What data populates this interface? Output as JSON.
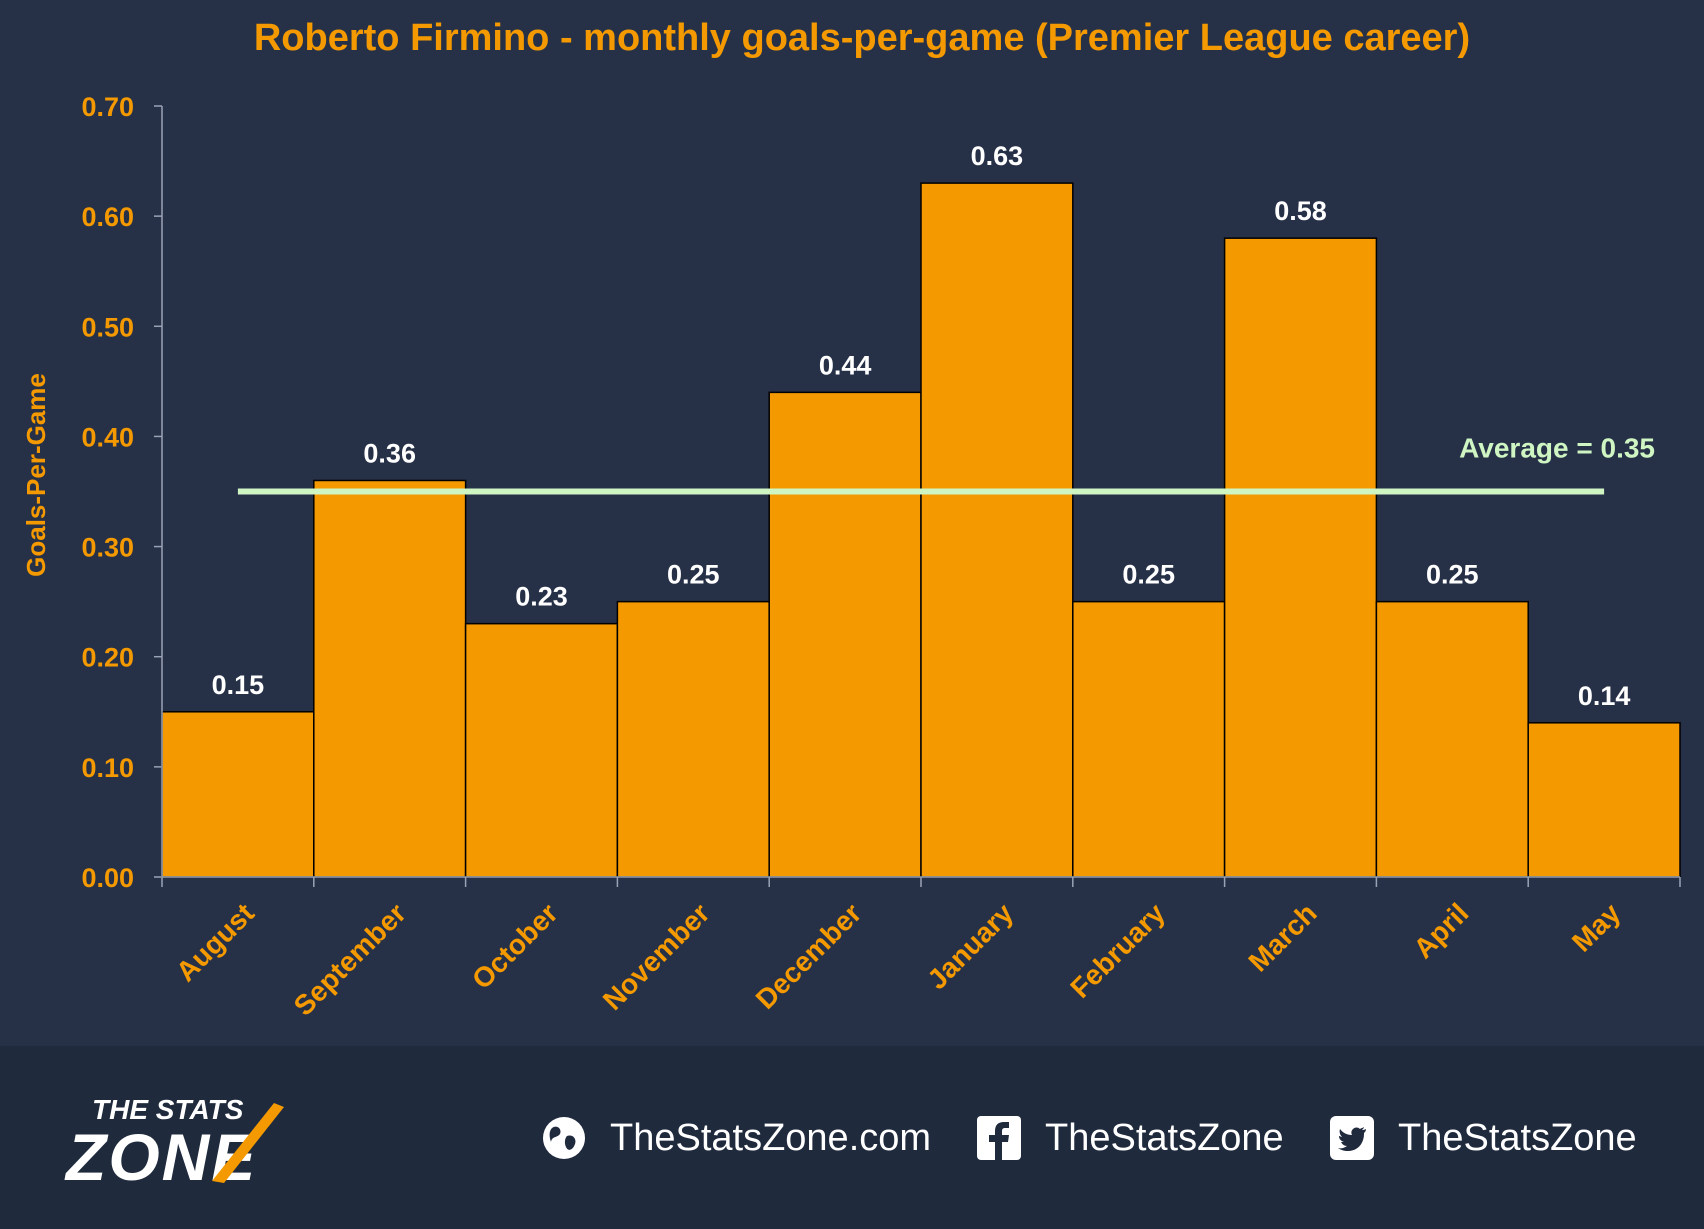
{
  "chart_data": {
    "type": "bar",
    "title": "Roberto Firmino - monthly goals-per-game (Premier League career)",
    "xlabel": "",
    "ylabel": "Goals-Per-Game",
    "categories": [
      "August",
      "September",
      "October",
      "November",
      "December",
      "January",
      "February",
      "March",
      "April",
      "May"
    ],
    "values": [
      0.15,
      0.36,
      0.23,
      0.25,
      0.44,
      0.63,
      0.25,
      0.58,
      0.25,
      0.14
    ],
    "data_labels": [
      "0.15",
      "0.36",
      "0.23",
      "0.25",
      "0.44",
      "0.63",
      "0.25",
      "0.58",
      "0.25",
      "0.14"
    ],
    "ylim": [
      0,
      0.7
    ],
    "yticks": [
      "0.00",
      "0.10",
      "0.20",
      "0.30",
      "0.40",
      "0.50",
      "0.60",
      "0.70"
    ],
    "average": {
      "value": 0.35,
      "label": "Average = 0.35"
    },
    "grid": false,
    "legend": "none",
    "colors": {
      "bar": "#F49A00",
      "bar_edge": "#000000",
      "average_line": "#CFF5C3",
      "text_accent": "#F49A00",
      "label_text": "#FFFFFF",
      "background": "#263148"
    }
  },
  "footer": {
    "logo": {
      "line1": "THE STATS",
      "line2": "ZONE"
    },
    "links": [
      {
        "icon": "globe-icon",
        "text": "TheStatsZone.com"
      },
      {
        "icon": "facebook-icon",
        "text": "TheStatsZone"
      },
      {
        "icon": "twitter-icon",
        "text": "TheStatsZone"
      }
    ]
  }
}
